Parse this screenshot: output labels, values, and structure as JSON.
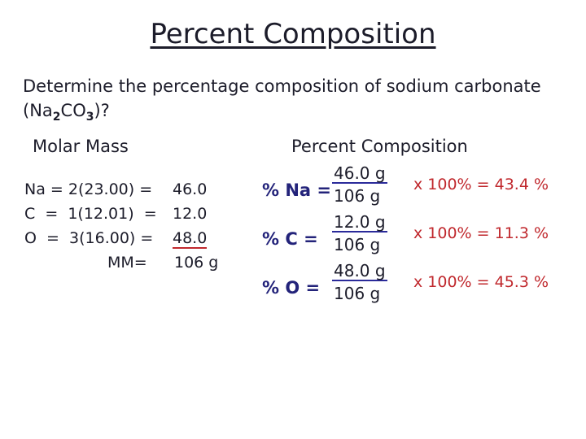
{
  "title": "Percent Composition",
  "question": {
    "line1": "Determine the percentage composition of sodium carbonate",
    "formula": [
      "(Na",
      "2",
      "CO",
      "3",
      ")?"
    ]
  },
  "molar_mass": {
    "heading": "Molar Mass",
    "rows": [
      {
        "expression": "Na = 2(23.00) =",
        "result": "46.0"
      },
      {
        "expression": "C  =  1(12.01)  =",
        "result": "12.0"
      },
      {
        "expression": "O  =  3(16.00) =",
        "result": "48.0"
      }
    ],
    "total_label": "MM=",
    "total": "106 g"
  },
  "percent": {
    "heading": "Percent Composition",
    "rows": [
      {
        "label": "% Na =",
        "numerator": "46.0 g",
        "denominator": "106 g",
        "result": "x 100% = 43.4 %"
      },
      {
        "label": "% C =",
        "numerator": "12.0 g",
        "denominator": "106 g",
        "result": "x 100% = 11.3 %"
      },
      {
        "label": "% O =",
        "numerator": "48.0 g",
        "denominator": "106 g",
        "result": "x 100% = 45.3 %"
      }
    ]
  }
}
